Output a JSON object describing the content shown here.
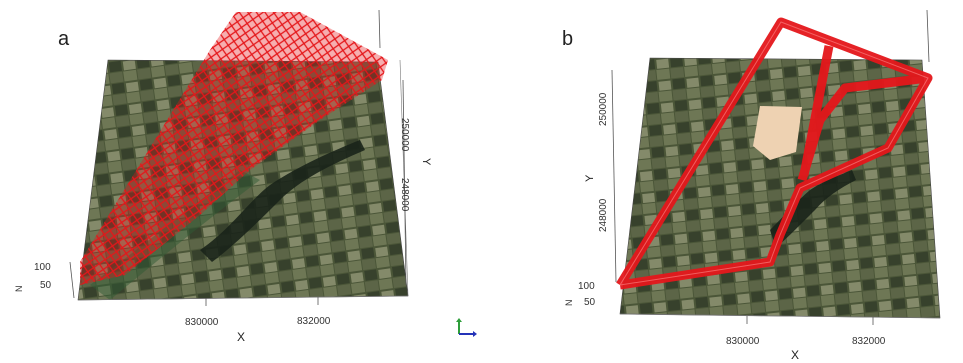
{
  "panel_a": {
    "letter": "a",
    "x_axis_label": "X",
    "y_axis_label": "Y",
    "z_axis_label": "N",
    "x_ticks": [
      "830000",
      "832000"
    ],
    "y_ticks": [
      "250000",
      "248000"
    ],
    "z_ticks": [
      "100",
      "50"
    ]
  },
  "panel_b": {
    "letter": "b",
    "x_axis_label": "X",
    "y_axis_label": "Y",
    "z_axis_label": "N",
    "x_ticks": [
      "830000",
      "832000"
    ],
    "y_ticks": [
      "250000",
      "248000"
    ],
    "z_ticks": [
      "100",
      "50"
    ]
  },
  "colors": {
    "mesh": "#e4171b",
    "fields_dark": "#39452d",
    "fields_light": "#7d8567",
    "lake": "#1a2419",
    "building": "#eed2b2"
  },
  "icons": [
    "axis-triad-icon"
  ]
}
